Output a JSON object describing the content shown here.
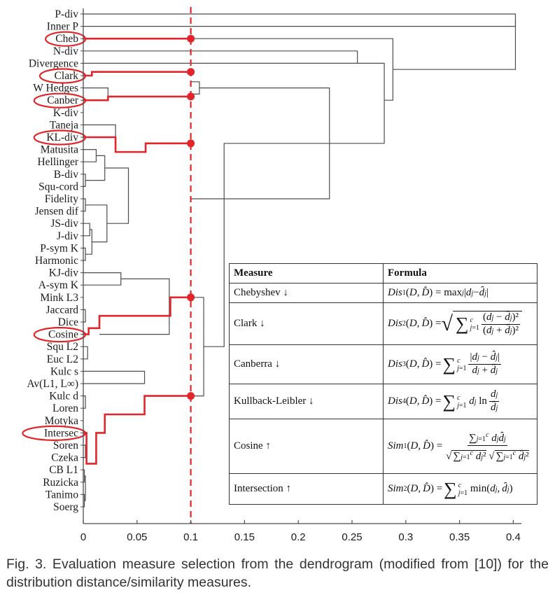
{
  "figure": {
    "leaves": [
      "P-div",
      "Inner P",
      "Cheb",
      "N-div",
      "Divergence",
      "Clark",
      "W Hedges",
      "Canber",
      "K-div",
      "Taneja",
      "KL-div",
      "Matusita",
      "Hellinger",
      "B-div",
      "Squ-cord",
      "Fidelity",
      "Jensen dif",
      "JS-div",
      "J-div",
      "P-sym K",
      "Harmonic",
      "KJ-div",
      "A-sym K",
      "Mink L3",
      "Jaccard",
      "Dice",
      "Cosine",
      "Squ L2",
      "Euc L2",
      "Kulc s",
      "Av(L1, L∞)",
      "Kulc d",
      "Loren",
      "Motyka",
      "Intersec",
      "Soren",
      "Czeka",
      "CB L1",
      "Ruzicka",
      "Tanimo",
      "Soerg"
    ],
    "highlighted": [
      "Cheb",
      "Clark",
      "Canber",
      "KL-div",
      "Cosine",
      "Intersec"
    ],
    "x_ticks": [
      "0",
      "0.05",
      "0.1",
      "0.15",
      "0.2",
      "0.25",
      "0.3",
      "0.35",
      "0.4"
    ],
    "threshold": 0.1,
    "colors": {
      "highlight": "#e0262b",
      "tree": "#4d4d4d"
    }
  },
  "table": {
    "headers": {
      "measure": "Measure",
      "formula": "Formula"
    },
    "rows": [
      {
        "measure": "Chebyshev ↓"
      },
      {
        "measure": "Clark ↓"
      },
      {
        "measure": "Canberra ↓"
      },
      {
        "measure": "Kullback-Leibler ↓"
      },
      {
        "measure": "Cosine ↑"
      },
      {
        "measure": "Intersection ↑"
      }
    ]
  },
  "caption": "Fig. 3. Evaluation measure selection from the dendrogram (modified from [10]) for the distribution distance/similarity measures."
}
